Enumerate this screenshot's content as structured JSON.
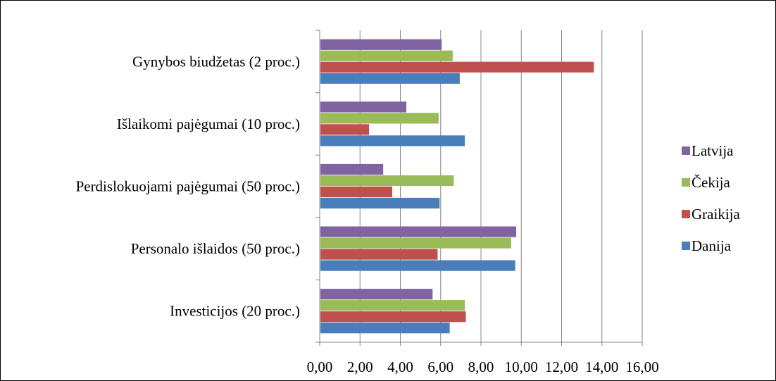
{
  "chart_data": {
    "type": "bar",
    "orientation": "horizontal",
    "title": "",
    "xlabel": "",
    "ylabel": "",
    "categories": [
      "Investicijos (20 proc.)",
      "Personalo išlaidos (50 proc.)",
      "Perdislokuojami pajėgumai (50 proc.)",
      "Išlaikomi pajėgumai (10 proc.)",
      "Gynybos biudžetas (2 proc.)"
    ],
    "series": [
      {
        "name": "Danija",
        "color": "#4a7ebb",
        "values": [
          6.45,
          9.7,
          5.95,
          7.2,
          6.95
        ]
      },
      {
        "name": "Graikija",
        "color": "#c0504d",
        "values": [
          7.25,
          5.85,
          3.6,
          2.45,
          13.6
        ]
      },
      {
        "name": "Čekija",
        "color": "#9bbb59",
        "values": [
          7.2,
          9.5,
          6.65,
          5.9,
          6.6
        ]
      },
      {
        "name": "Latvija",
        "color": "#8064a2",
        "values": [
          5.6,
          9.75,
          3.15,
          4.3,
          6.05
        ]
      }
    ],
    "xlim": [
      0,
      16
    ],
    "x_ticks": [
      "0,00",
      "2,00",
      "4,00",
      "6,00",
      "8,00",
      "10,00",
      "12,00",
      "14,00",
      "16,00"
    ],
    "grid": "vertical",
    "legend_position": "right",
    "legend_order": [
      "Latvija",
      "Čekija",
      "Graikija",
      "Danija"
    ]
  }
}
